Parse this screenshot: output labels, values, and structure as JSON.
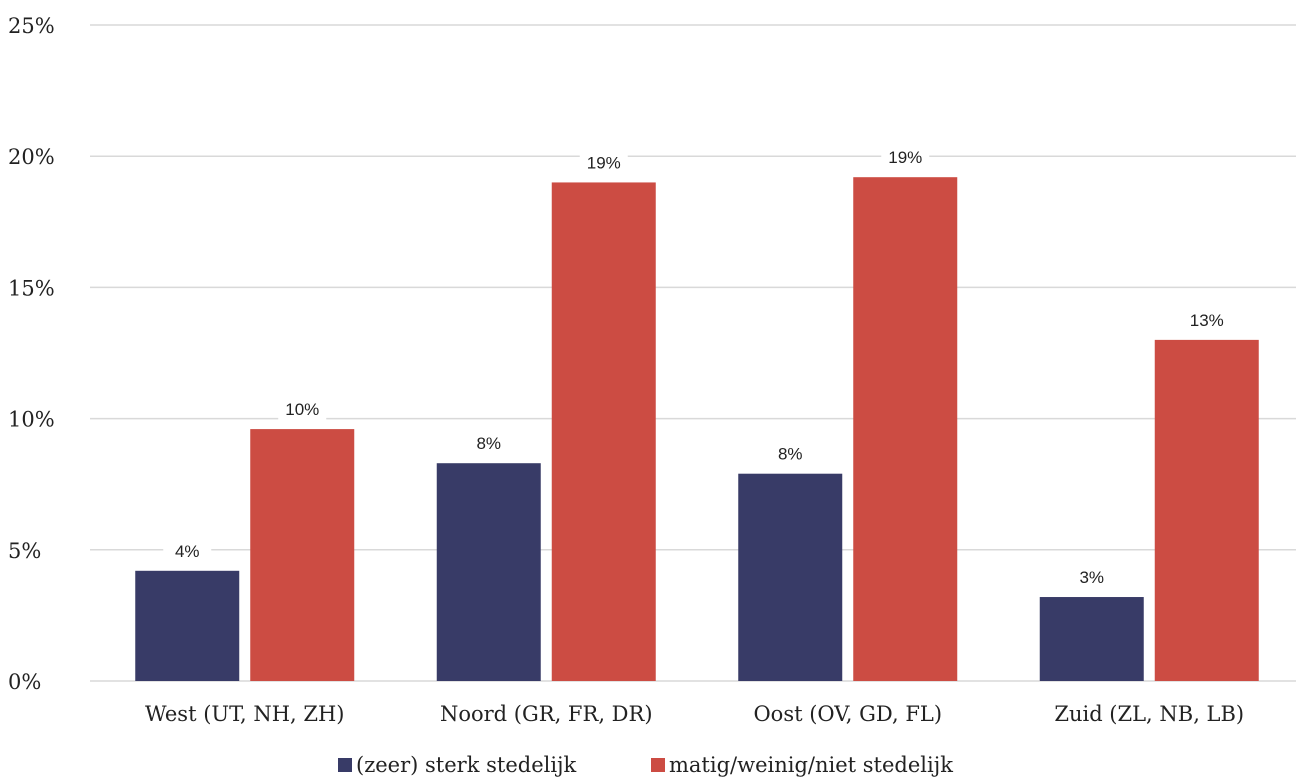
{
  "chart_data": {
    "type": "bar",
    "categories": [
      "West (UT, NH, ZH)",
      "Noord (GR, FR, DR)",
      "Oost (OV, GD, FL)",
      "Zuid (ZL, NB, LB)"
    ],
    "series": [
      {
        "name": "(zeer) sterk stedelijk",
        "values": [
          4.2,
          8.3,
          7.9,
          3.2
        ],
        "labels": [
          "4%",
          "8%",
          "8%",
          "3%"
        ],
        "color": "#383b67"
      },
      {
        "name": "matig/weinig/niet stedelijk",
        "values": [
          9.6,
          19.0,
          19.2,
          13.0
        ],
        "labels": [
          "10%",
          "19%",
          "19%",
          "13%"
        ],
        "color": "#cc4c43"
      }
    ],
    "ylim": [
      0,
      25
    ],
    "yticks": [
      0,
      5,
      10,
      15,
      20,
      25
    ],
    "ytick_labels": [
      "0%",
      "5%",
      "10%",
      "15%",
      "20%",
      "25%"
    ],
    "grid": true,
    "legend_position": "bottom"
  }
}
